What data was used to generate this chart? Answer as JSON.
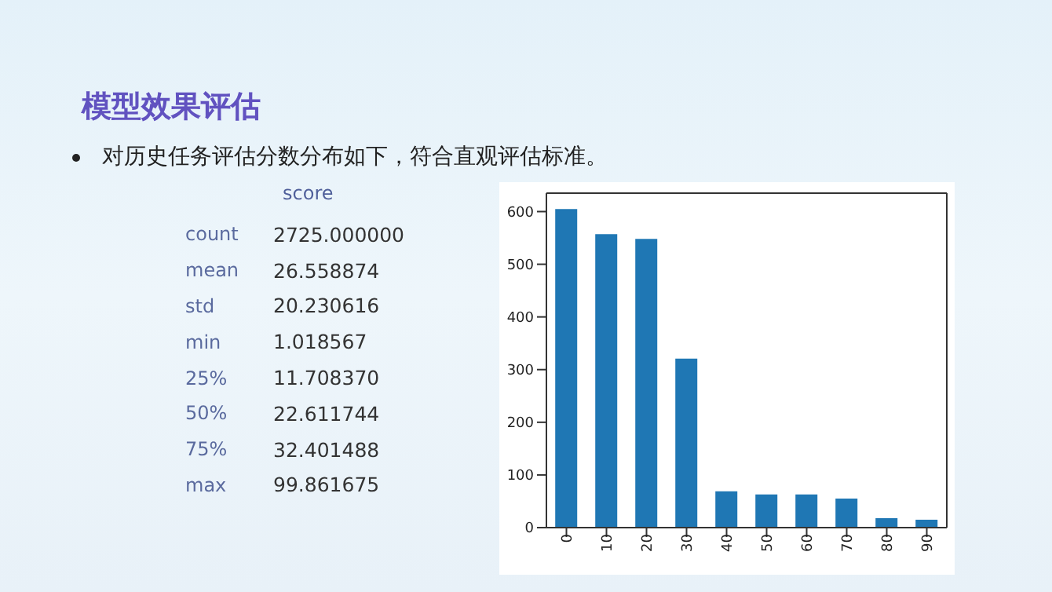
{
  "chart_data": {
    "type": "bar",
    "title": "模型效果评估",
    "subtitle": "对历史任务评估分数分布如下，符合直观评估标准。",
    "annotations": [
      "score",
      "count 2725.000000",
      "mean 26.558874",
      "std 20.230616",
      "min 1.018567",
      "25% 11.708370",
      "50% 22.611744",
      "75% 32.401488",
      "max 99.861675"
    ],
    "categories": [
      "0",
      "10",
      "20",
      "30",
      "40",
      "50",
      "60",
      "70",
      "80",
      "90"
    ],
    "values": [
      605,
      557,
      548,
      321,
      69,
      63,
      63,
      55,
      18,
      15
    ],
    "color": "#1f77b4",
    "ylim": [
      0,
      635
    ],
    "yticks": [
      0,
      100,
      200,
      300,
      400,
      500,
      600
    ],
    "grid": false,
    "legend": false
  }
}
